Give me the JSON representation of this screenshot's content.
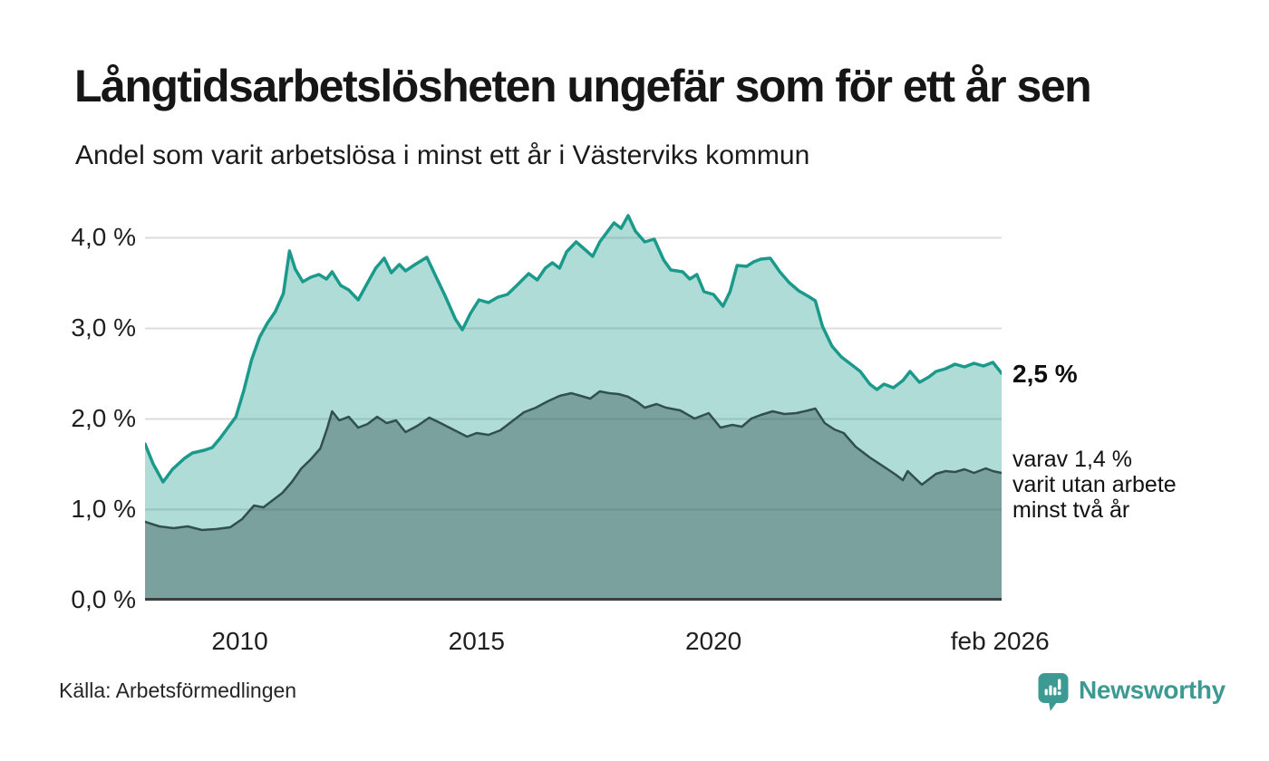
{
  "header": {
    "title": "Långtidsarbetslösheten ungefär som för ett år sen",
    "subtitle": "Andel som varit arbetslösa i minst ett år i Västerviks kommun"
  },
  "chart_data": {
    "type": "area",
    "title": "Långtidsarbetslösheten ungefär som för ett år sen",
    "subtitle": "Andel som varit arbetslösa i minst ett år i Västerviks kommun",
    "x_axis": {
      "range": [
        2008.0,
        2026.083
      ],
      "ticks": [
        {
          "label": "2010",
          "year": 2010
        },
        {
          "label": "2015",
          "year": 2015
        },
        {
          "label": "2020",
          "year": 2020
        },
        {
          "label": "feb 2026",
          "year": 2026.05
        }
      ]
    },
    "y_axis": {
      "range": [
        0,
        4.34
      ],
      "unit": "%",
      "gridlines": [
        1,
        2,
        3,
        4
      ],
      "ticks": [
        {
          "label": "0,0 %",
          "value": 0.0
        },
        {
          "label": "1,0 %",
          "value": 1.0
        },
        {
          "label": "2,0 %",
          "value": 2.0
        },
        {
          "label": "3,0 %",
          "value": 3.0
        },
        {
          "label": "4,0 %",
          "value": 4.0
        }
      ]
    },
    "series": [
      {
        "name": "Arbetslösa minst ett år",
        "color": "#1b9a8c",
        "fill": "rgba(27,154,140,0.35)",
        "points": [
          [
            2008.0,
            1.72
          ],
          [
            2008.17,
            1.5
          ],
          [
            2008.38,
            1.3
          ],
          [
            2008.58,
            1.44
          ],
          [
            2008.83,
            1.56
          ],
          [
            2009.0,
            1.62
          ],
          [
            2009.25,
            1.65
          ],
          [
            2009.42,
            1.68
          ],
          [
            2009.58,
            1.78
          ],
          [
            2009.75,
            1.9
          ],
          [
            2009.92,
            2.02
          ],
          [
            2010.08,
            2.3
          ],
          [
            2010.25,
            2.65
          ],
          [
            2010.42,
            2.9
          ],
          [
            2010.58,
            3.05
          ],
          [
            2010.75,
            3.18
          ],
          [
            2010.92,
            3.38
          ],
          [
            2011.05,
            3.85
          ],
          [
            2011.17,
            3.65
          ],
          [
            2011.33,
            3.51
          ],
          [
            2011.5,
            3.56
          ],
          [
            2011.67,
            3.59
          ],
          [
            2011.83,
            3.54
          ],
          [
            2011.95,
            3.62
          ],
          [
            2012.13,
            3.47
          ],
          [
            2012.3,
            3.42
          ],
          [
            2012.5,
            3.31
          ],
          [
            2012.7,
            3.5
          ],
          [
            2012.87,
            3.66
          ],
          [
            2013.05,
            3.77
          ],
          [
            2013.2,
            3.61
          ],
          [
            2013.37,
            3.7
          ],
          [
            2013.5,
            3.63
          ],
          [
            2013.7,
            3.7
          ],
          [
            2013.95,
            3.78
          ],
          [
            2014.13,
            3.58
          ],
          [
            2014.33,
            3.36
          ],
          [
            2014.55,
            3.1
          ],
          [
            2014.7,
            2.98
          ],
          [
            2014.87,
            3.16
          ],
          [
            2015.05,
            3.31
          ],
          [
            2015.25,
            3.28
          ],
          [
            2015.45,
            3.34
          ],
          [
            2015.65,
            3.37
          ],
          [
            2015.85,
            3.47
          ],
          [
            2016.1,
            3.6
          ],
          [
            2016.28,
            3.53
          ],
          [
            2016.45,
            3.66
          ],
          [
            2016.6,
            3.72
          ],
          [
            2016.75,
            3.66
          ],
          [
            2016.9,
            3.84
          ],
          [
            2017.1,
            3.95
          ],
          [
            2017.3,
            3.86
          ],
          [
            2017.45,
            3.79
          ],
          [
            2017.6,
            3.95
          ],
          [
            2017.9,
            4.16
          ],
          [
            2018.05,
            4.1
          ],
          [
            2018.2,
            4.24
          ],
          [
            2018.35,
            4.07
          ],
          [
            2018.55,
            3.95
          ],
          [
            2018.75,
            3.98
          ],
          [
            2018.95,
            3.75
          ],
          [
            2019.1,
            3.64
          ],
          [
            2019.35,
            3.62
          ],
          [
            2019.5,
            3.54
          ],
          [
            2019.65,
            3.59
          ],
          [
            2019.8,
            3.4
          ],
          [
            2020.0,
            3.37
          ],
          [
            2020.2,
            3.24
          ],
          [
            2020.35,
            3.4
          ],
          [
            2020.5,
            3.69
          ],
          [
            2020.7,
            3.68
          ],
          [
            2020.85,
            3.73
          ],
          [
            2021.0,
            3.76
          ],
          [
            2021.2,
            3.77
          ],
          [
            2021.4,
            3.62
          ],
          [
            2021.6,
            3.5
          ],
          [
            2021.8,
            3.41
          ],
          [
            2022.0,
            3.35
          ],
          [
            2022.15,
            3.3
          ],
          [
            2022.3,
            3.02
          ],
          [
            2022.5,
            2.8
          ],
          [
            2022.7,
            2.68
          ],
          [
            2022.9,
            2.6
          ],
          [
            2023.1,
            2.52
          ],
          [
            2023.3,
            2.38
          ],
          [
            2023.45,
            2.32
          ],
          [
            2023.6,
            2.38
          ],
          [
            2023.8,
            2.34
          ],
          [
            2024.0,
            2.42
          ],
          [
            2024.15,
            2.52
          ],
          [
            2024.35,
            2.4
          ],
          [
            2024.55,
            2.46
          ],
          [
            2024.7,
            2.52
          ],
          [
            2024.9,
            2.55
          ],
          [
            2025.1,
            2.6
          ],
          [
            2025.3,
            2.57
          ],
          [
            2025.5,
            2.61
          ],
          [
            2025.7,
            2.58
          ],
          [
            2025.9,
            2.62
          ],
          [
            2026.083,
            2.5
          ]
        ],
        "end_value_label": "2,5 %"
      },
      {
        "name": "varav utan arbete minst två år",
        "color": "#31504d",
        "fill": "rgba(43,73,70,0.40)",
        "points": [
          [
            2008.0,
            0.86
          ],
          [
            2008.3,
            0.81
          ],
          [
            2008.6,
            0.79
          ],
          [
            2008.9,
            0.81
          ],
          [
            2009.2,
            0.77
          ],
          [
            2009.5,
            0.78
          ],
          [
            2009.8,
            0.8
          ],
          [
            2010.05,
            0.89
          ],
          [
            2010.3,
            1.04
          ],
          [
            2010.5,
            1.02
          ],
          [
            2010.7,
            1.1
          ],
          [
            2010.9,
            1.18
          ],
          [
            2011.1,
            1.3
          ],
          [
            2011.3,
            1.45
          ],
          [
            2011.5,
            1.55
          ],
          [
            2011.7,
            1.67
          ],
          [
            2011.85,
            1.9
          ],
          [
            2011.95,
            2.08
          ],
          [
            2012.1,
            1.98
          ],
          [
            2012.3,
            2.02
          ],
          [
            2012.5,
            1.9
          ],
          [
            2012.7,
            1.94
          ],
          [
            2012.9,
            2.02
          ],
          [
            2013.1,
            1.95
          ],
          [
            2013.3,
            1.98
          ],
          [
            2013.5,
            1.85
          ],
          [
            2013.75,
            1.92
          ],
          [
            2014.0,
            2.01
          ],
          [
            2014.2,
            1.96
          ],
          [
            2014.5,
            1.88
          ],
          [
            2014.8,
            1.8
          ],
          [
            2015.0,
            1.84
          ],
          [
            2015.25,
            1.82
          ],
          [
            2015.5,
            1.87
          ],
          [
            2015.75,
            1.97
          ],
          [
            2016.0,
            2.07
          ],
          [
            2016.25,
            2.12
          ],
          [
            2016.5,
            2.19
          ],
          [
            2016.75,
            2.25
          ],
          [
            2017.0,
            2.28
          ],
          [
            2017.2,
            2.25
          ],
          [
            2017.4,
            2.22
          ],
          [
            2017.6,
            2.3
          ],
          [
            2017.8,
            2.28
          ],
          [
            2018.0,
            2.27
          ],
          [
            2018.2,
            2.24
          ],
          [
            2018.4,
            2.18
          ],
          [
            2018.55,
            2.12
          ],
          [
            2018.8,
            2.16
          ],
          [
            2019.0,
            2.12
          ],
          [
            2019.3,
            2.09
          ],
          [
            2019.6,
            2.0
          ],
          [
            2019.9,
            2.06
          ],
          [
            2020.15,
            1.9
          ],
          [
            2020.4,
            1.93
          ],
          [
            2020.6,
            1.91
          ],
          [
            2020.8,
            2.0
          ],
          [
            2021.0,
            2.04
          ],
          [
            2021.25,
            2.08
          ],
          [
            2021.5,
            2.05
          ],
          [
            2021.75,
            2.06
          ],
          [
            2022.0,
            2.09
          ],
          [
            2022.15,
            2.11
          ],
          [
            2022.35,
            1.95
          ],
          [
            2022.55,
            1.88
          ],
          [
            2022.75,
            1.84
          ],
          [
            2023.0,
            1.69
          ],
          [
            2023.3,
            1.57
          ],
          [
            2023.65,
            1.45
          ],
          [
            2023.85,
            1.38
          ],
          [
            2024.0,
            1.32
          ],
          [
            2024.1,
            1.42
          ],
          [
            2024.4,
            1.27
          ],
          [
            2024.7,
            1.39
          ],
          [
            2024.9,
            1.42
          ],
          [
            2025.1,
            1.41
          ],
          [
            2025.3,
            1.44
          ],
          [
            2025.5,
            1.4
          ],
          [
            2025.75,
            1.45
          ],
          [
            2025.9,
            1.42
          ],
          [
            2026.083,
            1.4
          ]
        ],
        "end_value_label": "1,4 %"
      }
    ],
    "annotations": {
      "end_label_primary": "2,5 %",
      "end_label_secondary_lines": [
        "varav 1,4 %",
        "varit utan arbete",
        "minst två år"
      ]
    },
    "grid_color": "#dcdcdc",
    "baseline_color": "#3d3d3d"
  },
  "footer": {
    "source": "Källa: Arbetsförmedlingen",
    "brand": "Newsworthy",
    "brand_color": "#3d9a93"
  }
}
